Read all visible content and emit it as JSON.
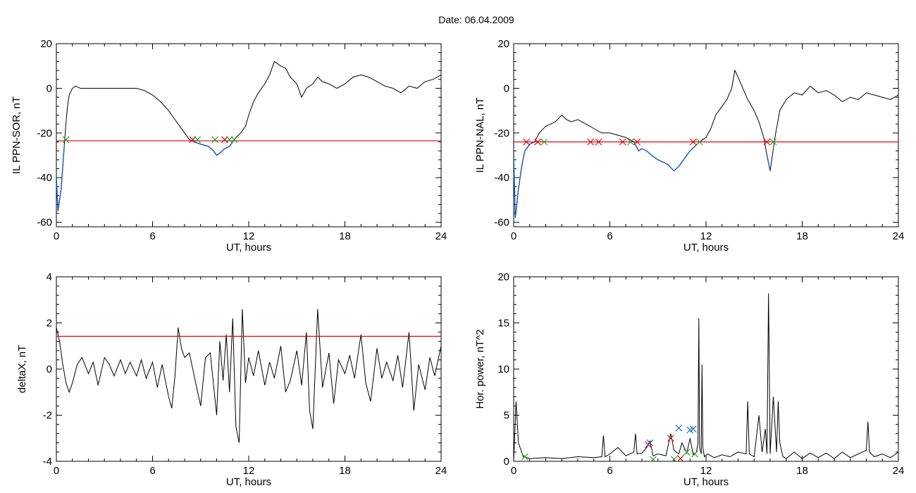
{
  "title": "Date:  06.04.2009",
  "colors": {
    "trace": "#000000",
    "below_threshold": "#1a55c8",
    "threshold": "#e8000b",
    "marker_red": "#e8000b",
    "marker_green": "#2ca02c",
    "marker_blue": "#1f77b4"
  },
  "chart_data": [
    {
      "id": "sor",
      "type": "line",
      "ylabel": "IL PPN-SOR, nT",
      "xlabel": "UT, hours",
      "xlim": [
        0,
        24
      ],
      "ylim": [
        -62,
        20
      ],
      "xticks": [
        0,
        6,
        12,
        18,
        24
      ],
      "yticks": [
        -60,
        -40,
        -20,
        0,
        20
      ],
      "threshold": -23.5,
      "below_color": "blue",
      "series": [
        {
          "x": [
            0,
            0.1,
            0.2,
            0.3,
            0.4,
            0.5,
            0.6,
            0.7,
            0.8,
            1.0,
            1.2,
            1.5,
            2,
            3,
            4,
            5,
            5.5,
            6,
            6.5,
            7,
            7.5,
            8,
            8.3,
            8.6,
            9,
            9.5,
            9.8,
            10.0,
            10.2,
            10.5,
            10.8,
            11.0,
            11.2,
            11.5,
            11.8,
            12.0,
            12.3,
            12.6,
            13.0,
            13.3,
            13.6,
            13.8,
            14.0,
            14.3,
            14.6,
            15.0,
            15.3,
            15.6,
            16.0,
            16.3,
            16.6,
            17,
            17.5,
            18,
            18.5,
            19,
            19.5,
            20,
            20.5,
            21,
            21.5,
            22,
            22.5,
            23,
            23.5,
            24
          ],
          "y": [
            -40,
            -55,
            -50,
            -45,
            -35,
            -25,
            -15,
            -8,
            -3,
            0,
            1,
            0,
            0,
            0,
            0,
            0,
            -1,
            -3,
            -6,
            -10,
            -15,
            -20,
            -23,
            -24,
            -25,
            -26,
            -28,
            -30,
            -29,
            -27,
            -26,
            -24,
            -22,
            -20,
            -17,
            -12,
            -6,
            -2,
            2,
            6,
            12,
            11,
            10,
            9,
            5,
            2,
            -4,
            0,
            2,
            5,
            3,
            2,
            0,
            2,
            5,
            6,
            5,
            3,
            1,
            0,
            -2,
            1,
            0,
            3,
            4,
            6
          ]
        }
      ],
      "markers": [
        {
          "x": 0.6,
          "y": -23,
          "color": "green"
        },
        {
          "x": 8.5,
          "y": -23,
          "color": "red"
        },
        {
          "x": 8.8,
          "y": -23,
          "color": "green"
        },
        {
          "x": 9.9,
          "y": -23,
          "color": "green"
        },
        {
          "x": 10.5,
          "y": -23,
          "color": "red"
        },
        {
          "x": 10.8,
          "y": -23,
          "color": "green"
        },
        {
          "x": 11.1,
          "y": -23,
          "color": "green"
        }
      ]
    },
    {
      "id": "nal",
      "type": "line",
      "ylabel": "IL PPN-NAL, nT",
      "xlabel": "UT, hours",
      "xlim": [
        0,
        24
      ],
      "ylim": [
        -62,
        20
      ],
      "xticks": [
        0,
        6,
        12,
        18,
        24
      ],
      "yticks": [
        -60,
        -40,
        -20,
        0,
        20
      ],
      "threshold": -24,
      "below_color": "blue",
      "series": [
        {
          "x": [
            0,
            0.1,
            0.2,
            0.3,
            0.5,
            0.7,
            1.0,
            1.3,
            1.6,
            2.0,
            2.3,
            2.6,
            3.0,
            3.3,
            3.6,
            4.0,
            4.5,
            5.0,
            5.5,
            6.0,
            6.5,
            7.0,
            7.5,
            7.8,
            8.0,
            8.3,
            8.6,
            9.0,
            9.3,
            9.6,
            10.0,
            10.3,
            10.6,
            11.0,
            11.3,
            11.6,
            12.0,
            12.3,
            12.6,
            13.0,
            13.3,
            13.6,
            13.8,
            14.0,
            14.3,
            14.6,
            15.0,
            15.3,
            15.6,
            15.8,
            16.0,
            16.3,
            16.6,
            17.0,
            17.5,
            18.0,
            18.5,
            19.0,
            19.5,
            20.0,
            20.5,
            21.0,
            21.5,
            22.0,
            22.5,
            23.0,
            23.5,
            24.0
          ],
          "y": [
            -30,
            -58,
            -52,
            -45,
            -35,
            -28,
            -25,
            -24,
            -20,
            -17,
            -16,
            -15,
            -12,
            -14,
            -15,
            -14,
            -16,
            -18,
            -20,
            -20,
            -21,
            -22,
            -24,
            -28,
            -27,
            -28,
            -30,
            -32,
            -33,
            -34,
            -37,
            -35,
            -32,
            -28,
            -26,
            -24,
            -22,
            -18,
            -12,
            -8,
            -5,
            0,
            8,
            5,
            0,
            -5,
            -10,
            -15,
            -22,
            -30,
            -37,
            -22,
            -10,
            -5,
            -2,
            -3,
            1,
            -2,
            -1,
            -3,
            -6,
            -4,
            -5,
            -2,
            -3,
            -4,
            -5,
            -3
          ]
        }
      ],
      "markers": [
        {
          "x": 0.8,
          "y": -24,
          "color": "red"
        },
        {
          "x": 1.5,
          "y": -24,
          "color": "red"
        },
        {
          "x": 1.9,
          "y": -24,
          "color": "green"
        },
        {
          "x": 4.8,
          "y": -24,
          "color": "red"
        },
        {
          "x": 5.3,
          "y": -24,
          "color": "red"
        },
        {
          "x": 6.8,
          "y": -24,
          "color": "red"
        },
        {
          "x": 7.3,
          "y": -24,
          "color": "green"
        },
        {
          "x": 7.7,
          "y": -24,
          "color": "red"
        },
        {
          "x": 11.2,
          "y": -24,
          "color": "red"
        },
        {
          "x": 11.6,
          "y": -24,
          "color": "green"
        },
        {
          "x": 15.8,
          "y": -24,
          "color": "red"
        },
        {
          "x": 16.2,
          "y": -24,
          "color": "green"
        }
      ]
    },
    {
      "id": "deltax",
      "type": "line",
      "ylabel": "deltaX, nT",
      "xlabel": "UT, hours",
      "xlim": [
        0,
        24
      ],
      "ylim": [
        -4,
        4
      ],
      "xticks": [
        0,
        6,
        12,
        18,
        24
      ],
      "yticks": [
        -4,
        -2,
        0,
        2,
        4
      ],
      "threshold": 1.42,
      "series": [
        {
          "x": [
            0,
            0.2,
            0.4,
            0.6,
            0.8,
            1.0,
            1.3,
            1.6,
            2.0,
            2.3,
            2.6,
            3.0,
            3.3,
            3.6,
            4.0,
            4.3,
            4.6,
            5.0,
            5.3,
            5.6,
            6.0,
            6.3,
            6.6,
            7.0,
            7.2,
            7.4,
            7.6,
            7.8,
            8.0,
            8.3,
            8.6,
            9.0,
            9.3,
            9.6,
            10.0,
            10.2,
            10.4,
            10.6,
            10.8,
            11.0,
            11.2,
            11.4,
            11.6,
            11.8,
            12.0,
            12.3,
            12.6,
            13.0,
            13.3,
            13.6,
            14.0,
            14.3,
            14.6,
            15.0,
            15.3,
            15.6,
            15.8,
            16.0,
            16.3,
            16.6,
            17.0,
            17.3,
            17.6,
            18.0,
            18.3,
            18.6,
            19.0,
            19.3,
            19.6,
            20.0,
            20.3,
            20.6,
            21.0,
            21.3,
            21.6,
            22.0,
            22.3,
            22.6,
            23.0,
            23.3,
            23.6,
            24.0
          ],
          "y": [
            1.8,
            1.2,
            0.2,
            -0.6,
            -1.0,
            -0.6,
            0.2,
            0.5,
            -0.2,
            0.3,
            -0.7,
            0.5,
            0.2,
            -0.3,
            0.4,
            -0.2,
            0.3,
            -0.3,
            0.4,
            -0.4,
            0.3,
            -0.8,
            0.2,
            -1.2,
            -1.7,
            -0.3,
            1.8,
            0.9,
            0.5,
            0.7,
            -0.3,
            -1.6,
            0.5,
            0.7,
            -2.0,
            1.2,
            -0.5,
            1.5,
            -1.0,
            2.2,
            -2.5,
            -3.2,
            2.6,
            -0.6,
            0.5,
            -0.3,
            0.8,
            -0.7,
            0.3,
            -0.4,
            1.0,
            -1.0,
            -0.5,
            0.8,
            -0.7,
            1.6,
            -1.8,
            -2.6,
            2.6,
            -0.8,
            0.7,
            -1.5,
            0.4,
            -0.2,
            0.6,
            -0.4,
            1.5,
            -0.6,
            -1.4,
            0.9,
            -0.4,
            0.3,
            -0.5,
            0.6,
            -0.8,
            1.6,
            -1.8,
            0.2,
            -0.9,
            0.5,
            -0.3,
            1.0
          ]
        }
      ],
      "markers": []
    },
    {
      "id": "power",
      "type": "line",
      "ylabel": "Hor. power, nT^2",
      "xlabel": "UT, hours",
      "xlim": [
        0,
        24
      ],
      "ylim": [
        0,
        20
      ],
      "xticks": [
        0,
        6,
        12,
        18,
        24
      ],
      "yticks": [
        0,
        5,
        10,
        15,
        20
      ],
      "threshold": null,
      "series": [
        {
          "x": [
            0,
            0.15,
            0.3,
            0.6,
            1.0,
            2,
            3,
            4,
            5,
            5.5,
            5.6,
            5.7,
            6.0,
            6.5,
            7.0,
            7.5,
            7.6,
            7.7,
            8.0,
            8.3,
            8.5,
            8.7,
            9.0,
            9.5,
            9.8,
            10.0,
            10.3,
            10.5,
            10.8,
            11.0,
            11.2,
            11.4,
            11.5,
            11.55,
            11.6,
            11.7,
            11.75,
            11.8,
            11.9,
            12.1,
            12.5,
            13.0,
            13.5,
            14.0,
            14.5,
            14.6,
            14.7,
            15.0,
            15.3,
            15.5,
            15.7,
            15.8,
            15.9,
            16.0,
            16.2,
            16.4,
            16.5,
            16.6,
            16.8,
            17.0,
            17.5,
            18.0,
            18.5,
            19.0,
            19.5,
            20.0,
            20.5,
            21.0,
            21.5,
            22.0,
            22.1,
            22.2,
            22.5,
            23.0,
            23.5,
            24.0
          ],
          "y": [
            0,
            6.5,
            2.0,
            0.5,
            0.3,
            0.4,
            0.3,
            0.5,
            0.4,
            0.5,
            2.8,
            0.5,
            0.8,
            1.5,
            0.6,
            1.0,
            3.0,
            0.8,
            0.9,
            1.5,
            2.2,
            0.6,
            0.8,
            0.6,
            3.0,
            1.2,
            0.8,
            2.0,
            0.9,
            2.5,
            0.7,
            1.0,
            2.0,
            15.5,
            1.5,
            0.8,
            10.5,
            1.5,
            0.5,
            0.8,
            0.4,
            0.7,
            0.5,
            1.0,
            0.8,
            6.5,
            0.8,
            0.5,
            5.0,
            1.0,
            3.5,
            0.8,
            18.2,
            0.8,
            7.0,
            1.0,
            6.5,
            2.0,
            0.5,
            0.3,
            1.0,
            0.3,
            0.9,
            0.4,
            0.9,
            0.3,
            1.0,
            0.4,
            0.8,
            1.2,
            4.3,
            1.0,
            0.5,
            0.8,
            0.4,
            1.0
          ]
        }
      ],
      "markers": [
        {
          "x": 0.7,
          "y": 0.5,
          "color": "green"
        },
        {
          "x": 8.4,
          "y": 1.8,
          "color": "red"
        },
        {
          "x": 8.5,
          "y": 2.0,
          "color": "blue"
        },
        {
          "x": 8.7,
          "y": 0.2,
          "color": "green"
        },
        {
          "x": 9.8,
          "y": 2.5,
          "color": "red"
        },
        {
          "x": 10.0,
          "y": 0.2,
          "color": "green"
        },
        {
          "x": 10.3,
          "y": 3.6,
          "color": "blue"
        },
        {
          "x": 10.4,
          "y": 0.3,
          "color": "red"
        },
        {
          "x": 10.8,
          "y": 1.0,
          "color": "green"
        },
        {
          "x": 11.0,
          "y": 3.4,
          "color": "blue"
        },
        {
          "x": 11.2,
          "y": 3.5,
          "color": "blue"
        },
        {
          "x": 11.3,
          "y": 0.8,
          "color": "green"
        }
      ]
    }
  ]
}
